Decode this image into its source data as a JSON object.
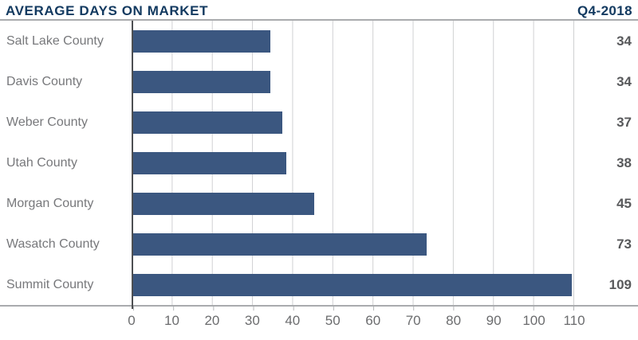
{
  "header": {
    "title": "AVERAGE DAYS ON MARKET",
    "period": "Q4-2018"
  },
  "chart_data": {
    "type": "bar",
    "orientation": "horizontal",
    "title": "AVERAGE DAYS ON MARKET",
    "subtitle": "Q4-2018",
    "categories": [
      "Salt Lake County",
      "Davis County",
      "Weber County",
      "Utah County",
      "Morgan County",
      "Wasatch County",
      "Summit County"
    ],
    "values": [
      34,
      34,
      37,
      38,
      45,
      73,
      109
    ],
    "value_labels": [
      "34",
      "34",
      "37",
      "38",
      "45",
      "73",
      "109"
    ],
    "xlabel": "",
    "ylabel": "",
    "xlim": [
      0,
      110
    ],
    "xticks": [
      0,
      10,
      20,
      30,
      40,
      50,
      60,
      70,
      80,
      90,
      100,
      110
    ],
    "grid": true,
    "legend": false,
    "colors": {
      "bar": "#3b5780",
      "title": "#133a60",
      "category_label": "#77787b",
      "value_label": "#58595b",
      "tick_label": "#6b6c6e",
      "gridline": "#d0d1d3",
      "axis_rule": "#a9abae",
      "zero_axis": "#4d4f52"
    }
  }
}
